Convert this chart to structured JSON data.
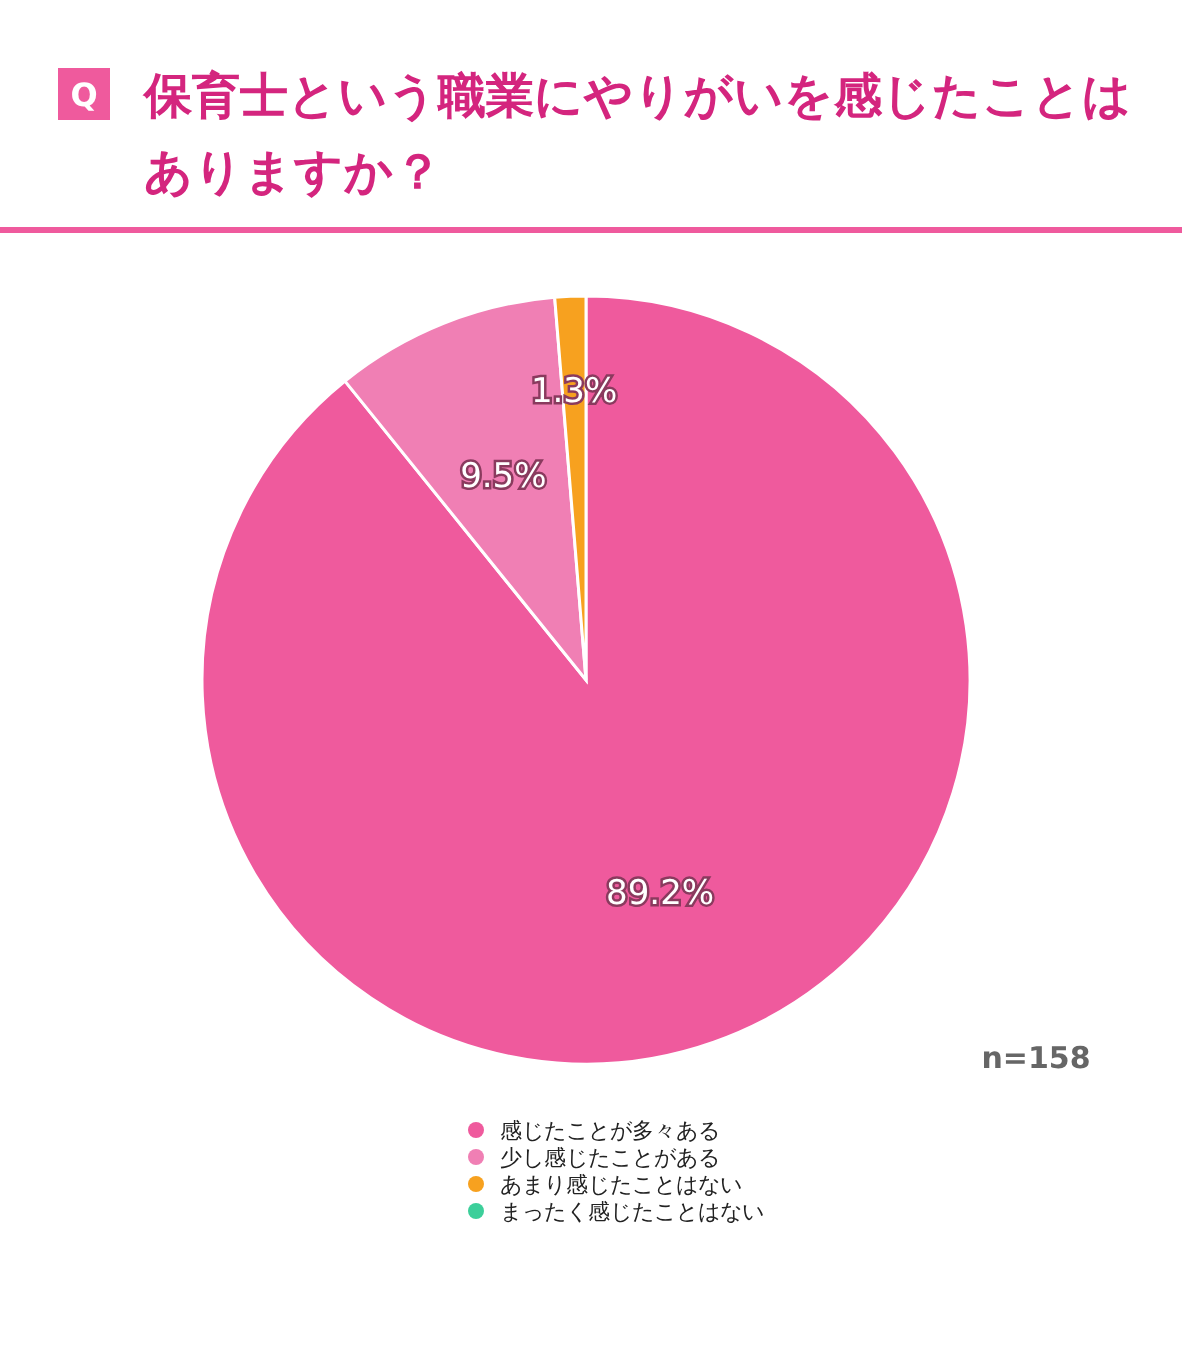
{
  "chart_data": {
    "type": "pie",
    "title": "保育士という職業にやりがいを感じたことはありますか？",
    "categories": [
      "感じたことが多々ある",
      "少し感じたことがある",
      "あまり感じたことはない",
      "まったく感じたことはない"
    ],
    "values": [
      89.2,
      9.5,
      1.3,
      0
    ],
    "colors": [
      "#ef5a9d",
      "#f07fb4",
      "#f7a11f",
      "#3ccf9a"
    ],
    "value_labels": [
      "89.2%",
      "9.5%",
      "1.3%",
      null
    ],
    "legend": "bottom",
    "annotations": [
      "Q",
      "n=158"
    ]
  }
}
